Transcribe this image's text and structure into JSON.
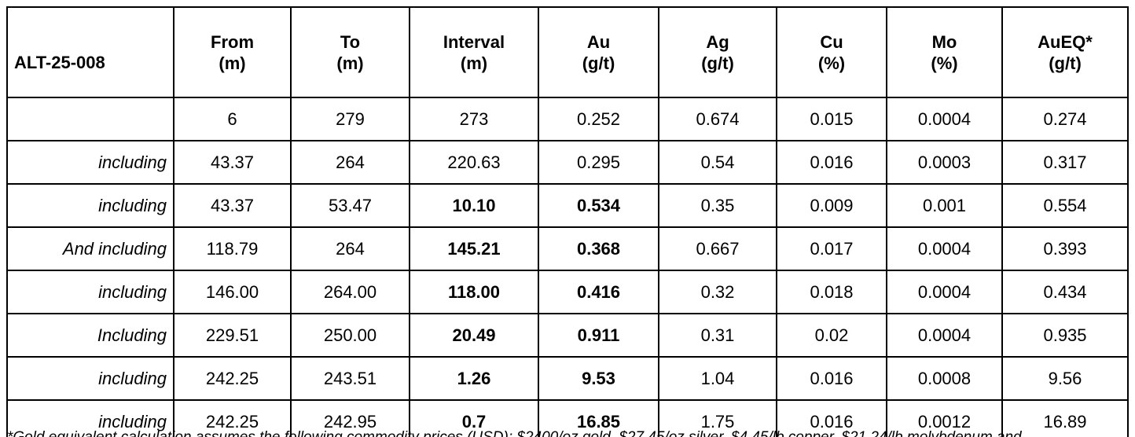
{
  "table": {
    "header": [
      "ALT-25-008",
      "From\n(m)",
      "To\n(m)",
      "Interval\n(m)",
      "Au\n(g/t)",
      "Ag\n(g/t)",
      "Cu\n(%)",
      "Mo\n(%)",
      "AuEQ*\n(g/t)"
    ],
    "rows": [
      [
        null,
        "6",
        "279",
        "273",
        "0.252",
        "0.674",
        "0.015",
        "0.0004",
        "0.274"
      ],
      [
        "including",
        "43.37",
        "264",
        "220.63",
        "0.295",
        "0.54",
        "0.016",
        "0.0003",
        "0.317"
      ],
      [
        "including",
        "43.37",
        "53.47",
        "10.10",
        "0.534",
        "0.35",
        "0.009",
        "0.001",
        "0.554"
      ],
      [
        "And including",
        "118.79",
        "264",
        "145.21",
        "0.368",
        "0.667",
        "0.017",
        "0.0004",
        "0.393"
      ],
      [
        "including",
        "146.00",
        "264.00",
        "118.00",
        "0.416",
        "0.32",
        "0.018",
        "0.0004",
        "0.434"
      ],
      [
        "Including",
        "229.51",
        "250.00",
        "20.49",
        "0.911",
        "0.31",
        "0.02",
        "0.0004",
        "0.935"
      ],
      [
        "including",
        "242.25",
        "243.51",
        "1.26",
        "9.53",
        "1.04",
        "0.016",
        "0.0008",
        "9.56"
      ],
      [
        "including",
        "242.25",
        "242.95",
        "0.7",
        "16.85",
        "1.75",
        "0.016",
        "0.0012",
        "16.89"
      ]
    ]
  },
  "footnote": "*Gold equivalent calculation assumes the following commodity prices (USD): $2400/oz gold, $27.45/oz silver, $4.45/lb copper, $21.24/lb molybdenum and"
}
